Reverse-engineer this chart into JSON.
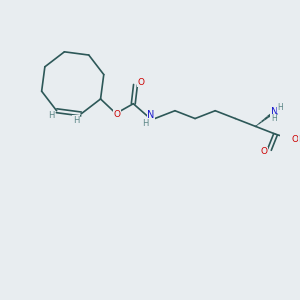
{
  "background_color": "#e8edf0",
  "bond_color": "#2d5858",
  "atom_colors": {
    "O": "#cc0000",
    "N": "#1a1acc",
    "H_label": "#5a8585",
    "C": "#2d5858"
  },
  "figsize": [
    3.0,
    3.0
  ],
  "dpi": 100,
  "xlim": [
    0,
    10
  ],
  "ylim": [
    0,
    10
  ]
}
